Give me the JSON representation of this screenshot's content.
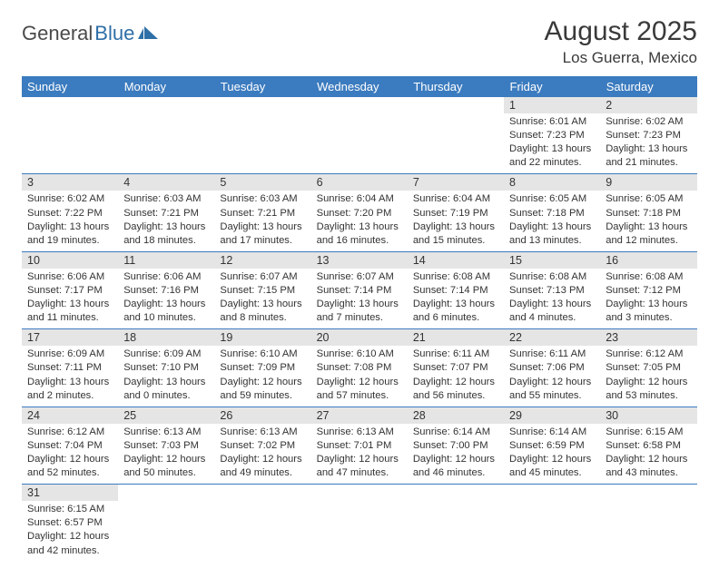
{
  "logo": {
    "text1": "General",
    "text2": "Blue"
  },
  "title": "August 2025",
  "subtitle": "Los Guerra, Mexico",
  "colors": {
    "header_bg": "#3b7bbf",
    "header_fg": "#ffffff",
    "daynum_bg": "#e5e5e5",
    "border": "#3b7bbf",
    "text": "#333333",
    "logo_gray": "#4a4a4a",
    "logo_blue": "#2f6fa7"
  },
  "weekdays": [
    "Sunday",
    "Monday",
    "Tuesday",
    "Wednesday",
    "Thursday",
    "Friday",
    "Saturday"
  ],
  "weeks": [
    [
      null,
      null,
      null,
      null,
      null,
      {
        "n": "1",
        "sr": "Sunrise: 6:01 AM",
        "ss": "Sunset: 7:23 PM",
        "dl": "Daylight: 13 hours and 22 minutes."
      },
      {
        "n": "2",
        "sr": "Sunrise: 6:02 AM",
        "ss": "Sunset: 7:23 PM",
        "dl": "Daylight: 13 hours and 21 minutes."
      }
    ],
    [
      {
        "n": "3",
        "sr": "Sunrise: 6:02 AM",
        "ss": "Sunset: 7:22 PM",
        "dl": "Daylight: 13 hours and 19 minutes."
      },
      {
        "n": "4",
        "sr": "Sunrise: 6:03 AM",
        "ss": "Sunset: 7:21 PM",
        "dl": "Daylight: 13 hours and 18 minutes."
      },
      {
        "n": "5",
        "sr": "Sunrise: 6:03 AM",
        "ss": "Sunset: 7:21 PM",
        "dl": "Daylight: 13 hours and 17 minutes."
      },
      {
        "n": "6",
        "sr": "Sunrise: 6:04 AM",
        "ss": "Sunset: 7:20 PM",
        "dl": "Daylight: 13 hours and 16 minutes."
      },
      {
        "n": "7",
        "sr": "Sunrise: 6:04 AM",
        "ss": "Sunset: 7:19 PM",
        "dl": "Daylight: 13 hours and 15 minutes."
      },
      {
        "n": "8",
        "sr": "Sunrise: 6:05 AM",
        "ss": "Sunset: 7:18 PM",
        "dl": "Daylight: 13 hours and 13 minutes."
      },
      {
        "n": "9",
        "sr": "Sunrise: 6:05 AM",
        "ss": "Sunset: 7:18 PM",
        "dl": "Daylight: 13 hours and 12 minutes."
      }
    ],
    [
      {
        "n": "10",
        "sr": "Sunrise: 6:06 AM",
        "ss": "Sunset: 7:17 PM",
        "dl": "Daylight: 13 hours and 11 minutes."
      },
      {
        "n": "11",
        "sr": "Sunrise: 6:06 AM",
        "ss": "Sunset: 7:16 PM",
        "dl": "Daylight: 13 hours and 10 minutes."
      },
      {
        "n": "12",
        "sr": "Sunrise: 6:07 AM",
        "ss": "Sunset: 7:15 PM",
        "dl": "Daylight: 13 hours and 8 minutes."
      },
      {
        "n": "13",
        "sr": "Sunrise: 6:07 AM",
        "ss": "Sunset: 7:14 PM",
        "dl": "Daylight: 13 hours and 7 minutes."
      },
      {
        "n": "14",
        "sr": "Sunrise: 6:08 AM",
        "ss": "Sunset: 7:14 PM",
        "dl": "Daylight: 13 hours and 6 minutes."
      },
      {
        "n": "15",
        "sr": "Sunrise: 6:08 AM",
        "ss": "Sunset: 7:13 PM",
        "dl": "Daylight: 13 hours and 4 minutes."
      },
      {
        "n": "16",
        "sr": "Sunrise: 6:08 AM",
        "ss": "Sunset: 7:12 PM",
        "dl": "Daylight: 13 hours and 3 minutes."
      }
    ],
    [
      {
        "n": "17",
        "sr": "Sunrise: 6:09 AM",
        "ss": "Sunset: 7:11 PM",
        "dl": "Daylight: 13 hours and 2 minutes."
      },
      {
        "n": "18",
        "sr": "Sunrise: 6:09 AM",
        "ss": "Sunset: 7:10 PM",
        "dl": "Daylight: 13 hours and 0 minutes."
      },
      {
        "n": "19",
        "sr": "Sunrise: 6:10 AM",
        "ss": "Sunset: 7:09 PM",
        "dl": "Daylight: 12 hours and 59 minutes."
      },
      {
        "n": "20",
        "sr": "Sunrise: 6:10 AM",
        "ss": "Sunset: 7:08 PM",
        "dl": "Daylight: 12 hours and 57 minutes."
      },
      {
        "n": "21",
        "sr": "Sunrise: 6:11 AM",
        "ss": "Sunset: 7:07 PM",
        "dl": "Daylight: 12 hours and 56 minutes."
      },
      {
        "n": "22",
        "sr": "Sunrise: 6:11 AM",
        "ss": "Sunset: 7:06 PM",
        "dl": "Daylight: 12 hours and 55 minutes."
      },
      {
        "n": "23",
        "sr": "Sunrise: 6:12 AM",
        "ss": "Sunset: 7:05 PM",
        "dl": "Daylight: 12 hours and 53 minutes."
      }
    ],
    [
      {
        "n": "24",
        "sr": "Sunrise: 6:12 AM",
        "ss": "Sunset: 7:04 PM",
        "dl": "Daylight: 12 hours and 52 minutes."
      },
      {
        "n": "25",
        "sr": "Sunrise: 6:13 AM",
        "ss": "Sunset: 7:03 PM",
        "dl": "Daylight: 12 hours and 50 minutes."
      },
      {
        "n": "26",
        "sr": "Sunrise: 6:13 AM",
        "ss": "Sunset: 7:02 PM",
        "dl": "Daylight: 12 hours and 49 minutes."
      },
      {
        "n": "27",
        "sr": "Sunrise: 6:13 AM",
        "ss": "Sunset: 7:01 PM",
        "dl": "Daylight: 12 hours and 47 minutes."
      },
      {
        "n": "28",
        "sr": "Sunrise: 6:14 AM",
        "ss": "Sunset: 7:00 PM",
        "dl": "Daylight: 12 hours and 46 minutes."
      },
      {
        "n": "29",
        "sr": "Sunrise: 6:14 AM",
        "ss": "Sunset: 6:59 PM",
        "dl": "Daylight: 12 hours and 45 minutes."
      },
      {
        "n": "30",
        "sr": "Sunrise: 6:15 AM",
        "ss": "Sunset: 6:58 PM",
        "dl": "Daylight: 12 hours and 43 minutes."
      }
    ],
    [
      {
        "n": "31",
        "sr": "Sunrise: 6:15 AM",
        "ss": "Sunset: 6:57 PM",
        "dl": "Daylight: 12 hours and 42 minutes."
      },
      null,
      null,
      null,
      null,
      null,
      null
    ]
  ]
}
